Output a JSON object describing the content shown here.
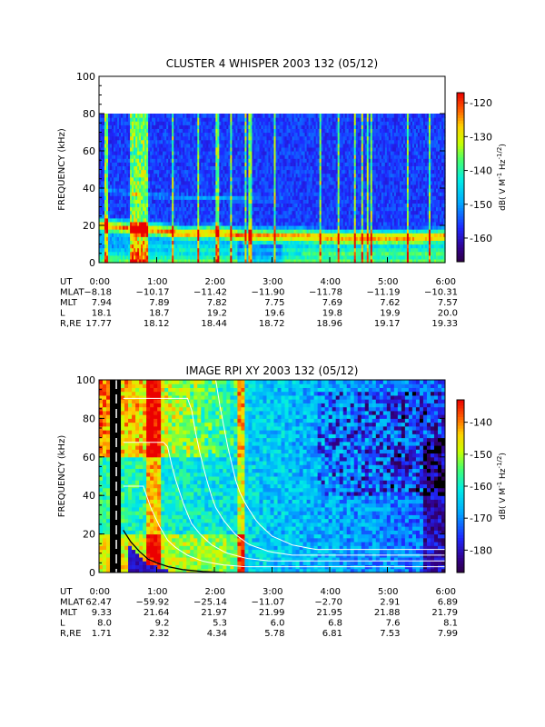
{
  "chart_data": [
    {
      "type": "heatmap",
      "title": "CLUSTER 4 WHISPER 2003 132 (05/12)",
      "ylabel": "FREQUENCY (kHz)",
      "ylim": [
        0,
        100
      ],
      "xlim": [
        0,
        6
      ],
      "data_ylim": [
        0,
        80
      ],
      "y_ticks": [
        "0",
        "20",
        "40",
        "60",
        "80",
        "100"
      ],
      "colorbar": {
        "label": "dB( V M",
        "label_sup1": "-1",
        "label_mid": " Hz",
        "label_sup2": "-1/2",
        "label_end": ")",
        "range": [
          -167,
          -117
        ],
        "ticks": [
          "-120",
          "-130",
          "-140",
          "-150",
          "-160"
        ],
        "tick_values": [
          -120,
          -130,
          -140,
          -150,
          -160
        ]
      },
      "features": {
        "emission_band_khz": [
          [
            0,
            21
          ],
          [
            0.5,
            19
          ],
          [
            1,
            18
          ],
          [
            1.5,
            16
          ],
          [
            2,
            17
          ],
          [
            2.5,
            15
          ],
          [
            3,
            15
          ],
          [
            3.5,
            15
          ],
          [
            4,
            14
          ],
          [
            4.5,
            14
          ],
          [
            5,
            14
          ],
          [
            5.5,
            14
          ],
          [
            6,
            15
          ]
        ],
        "secondary_band_khz": [
          [
            0,
            39
          ],
          [
            1,
            36
          ],
          [
            2,
            35
          ],
          [
            3,
            34
          ]
        ],
        "spike_hours": [
          0.1,
          0.15,
          0.55,
          0.58,
          0.62,
          0.65,
          0.68,
          0.72,
          0.75,
          0.78,
          0.82,
          1.28,
          1.72,
          2.05,
          2.08,
          2.3,
          2.55,
          2.62,
          3.05,
          3.85,
          4.15,
          4.45,
          4.55,
          4.65,
          4.72,
          5.35,
          5.72
        ]
      },
      "ephemeris": {
        "row_labels": [
          "UT",
          "MLAT",
          "MLT",
          "L",
          "R,RE"
        ],
        "times": [
          "0:00",
          "1:00",
          "2:00",
          "3:00",
          "4:00",
          "5:00",
          "6:00"
        ],
        "rows": [
          [
            "−8.18",
            "−10.17",
            "−11.42",
            "−11.90",
            "−11.78",
            "−11.19",
            "−10.31"
          ],
          [
            "7.94",
            "7.89",
            "7.82",
            "7.75",
            "7.69",
            "7.62",
            "7.57"
          ],
          [
            "18.1",
            "18.7",
            "19.2",
            "19.6",
            "19.8",
            "19.9",
            "20.0"
          ],
          [
            "17.77",
            "18.12",
            "18.44",
            "18.72",
            "18.96",
            "19.17",
            "19.33"
          ]
        ]
      }
    },
    {
      "type": "heatmap",
      "title": "IMAGE RPI XY 2003 132 (05/12)",
      "ylabel": "FREQUENCY (kHz)",
      "ylim": [
        0,
        100
      ],
      "xlim": [
        0,
        6
      ],
      "y_ticks": [
        "0",
        "20",
        "40",
        "60",
        "80",
        "100"
      ],
      "colorbar": {
        "label": "dB( V M",
        "label_sup1": "-1",
        "label_mid": " Hz",
        "label_sup2": "-1/2",
        "label_end": ")",
        "range": [
          -187,
          -133
        ],
        "ticks": [
          "-140",
          "-150",
          "-160",
          "-170",
          "-180"
        ],
        "tick_values": [
          -140,
          -150,
          -160,
          -170,
          -180
        ]
      },
      "features": {
        "plasma_cutoff_curve_khz": [
          [
            0.42,
            22
          ],
          [
            0.55,
            16
          ],
          [
            0.7,
            11
          ],
          [
            0.85,
            7
          ],
          [
            1.0,
            5
          ],
          [
            1.2,
            3
          ],
          [
            1.45,
            1.5
          ],
          [
            1.8,
            0.5
          ],
          [
            2.2,
            0
          ]
        ],
        "white_curve_offsets_hours": [
          0,
          0.35,
          0.75,
          1.15,
          1.55
        ],
        "black_gap_hours": [
          [
            0.22,
            0.35
          ]
        ]
      },
      "ephemeris": {
        "row_labels": [
          "UT",
          "MLAT",
          "MLT",
          "L",
          "R,RE"
        ],
        "times": [
          "0:00",
          "1:00",
          "2:00",
          "3:00",
          "4:00",
          "5:00",
          "6:00"
        ],
        "rows": [
          [
            "62.47",
            "−59.92",
            "−25.14",
            "−11.07",
            "−2.70",
            "2.91",
            "6.89"
          ],
          [
            "9.33",
            "21.64",
            "21.97",
            "21.99",
            "21.95",
            "21.88",
            "21.79"
          ],
          [
            "8.0",
            "9.2",
            "5.3",
            "6.0",
            "6.8",
            "7.6",
            "8.1"
          ],
          [
            "1.71",
            "2.32",
            "4.34",
            "5.78",
            "6.81",
            "7.53",
            "7.99"
          ]
        ]
      }
    }
  ]
}
